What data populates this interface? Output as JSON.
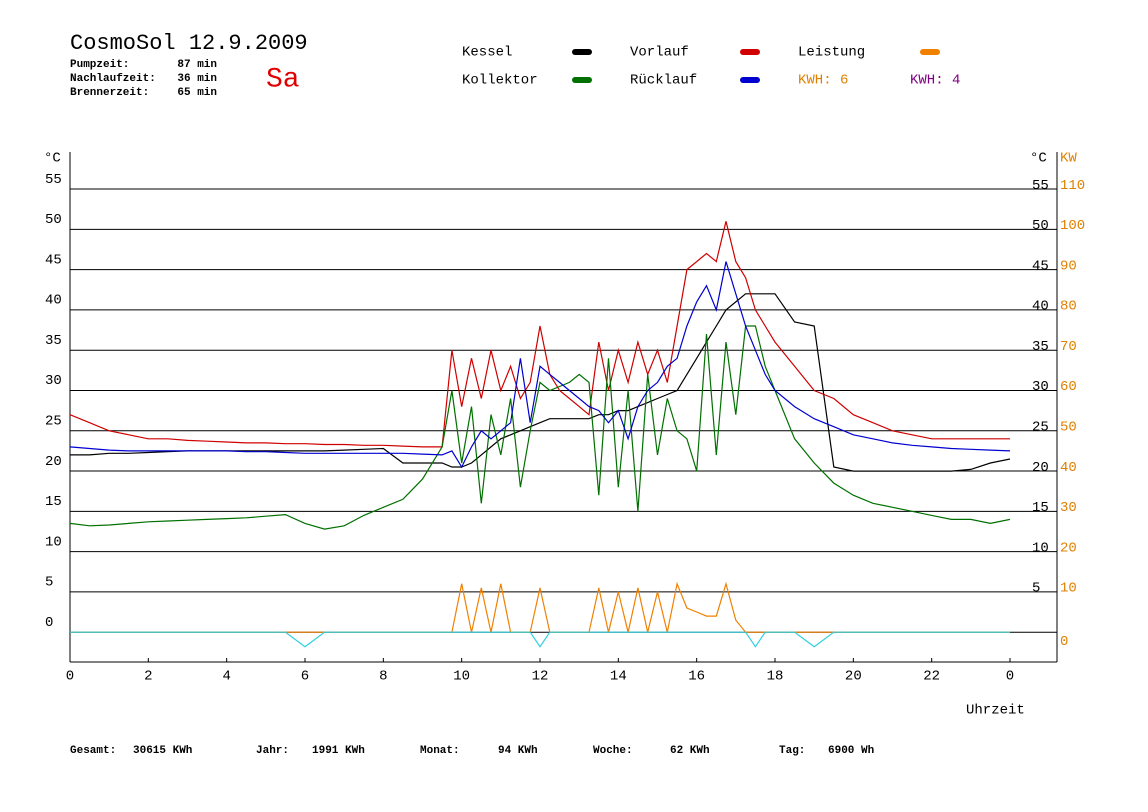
{
  "chart_data": {
    "type": "line",
    "title": "CosmoSol 12.9.2009",
    "day": "Sa",
    "day_color": "#e00000",
    "stats": [
      [
        "Pumpzeit:",
        "87 min"
      ],
      [
        "Nachlaufzeit:",
        "36 min"
      ],
      [
        "Brennerzeit:",
        "65 min"
      ]
    ],
    "kwh_labels": [
      {
        "text": "KWH: 6",
        "color": "#e08000"
      },
      {
        "text": "KWH: 4",
        "color": "#800080"
      }
    ],
    "footer": [
      [
        "Gesamt:",
        "30615 KWh"
      ],
      [
        "Jahr:",
        "1991 KWh"
      ],
      [
        "Monat:",
        "94 KWh"
      ],
      [
        "Woche:",
        "62 KWh"
      ],
      [
        "Tag:",
        "6900 Wh"
      ]
    ],
    "y_label": "°C",
    "y2_label": "KW",
    "x_label": "Uhrzeit",
    "xlim": [
      0,
      25.2
    ],
    "xticks": [
      0,
      2,
      4,
      6,
      8,
      10,
      12,
      14,
      16,
      18,
      20,
      22,
      {
        "value": 24,
        "label": "0"
      }
    ],
    "ylim": [
      -3.7,
      59.6
    ],
    "yticks": [
      0,
      5,
      10,
      15,
      20,
      25,
      30,
      35,
      40,
      45,
      50,
      55
    ],
    "y2lim": [
      -7.4,
      119.2
    ],
    "y2ticks": [
      0,
      10,
      20,
      30,
      40,
      50,
      60,
      70,
      80,
      90,
      100,
      110
    ],
    "y2_color": "#e08000",
    "grid": true,
    "x": [
      0,
      0.5,
      1,
      1.5,
      2,
      2.5,
      3,
      3.5,
      4,
      4.5,
      5,
      5.5,
      6,
      6.5,
      7,
      7.5,
      8,
      8.5,
      9,
      9.5,
      9.75,
      10,
      10.25,
      10.5,
      10.75,
      11,
      11.25,
      11.5,
      11.75,
      12,
      12.25,
      12.5,
      12.75,
      13,
      13.25,
      13.5,
      13.75,
      14,
      14.25,
      14.5,
      14.75,
      15,
      15.25,
      15.5,
      15.75,
      16,
      16.25,
      16.5,
      16.75,
      17,
      17.25,
      17.5,
      17.75,
      18,
      18.5,
      19,
      19.5,
      20,
      20.5,
      21,
      21.5,
      22,
      22.5,
      23,
      23.5,
      24
    ],
    "series": [
      {
        "name": "Kessel",
        "color": "#000000",
        "values": [
          22,
          22,
          22.2,
          22.2,
          22.3,
          22.4,
          22.5,
          22.5,
          22.5,
          22.5,
          22.5,
          22.5,
          22.5,
          22.5,
          22.6,
          22.7,
          22.8,
          21,
          21,
          21,
          20.5,
          20.5,
          21,
          22,
          23,
          24,
          24.5,
          25,
          25.5,
          26,
          26.5,
          26.5,
          26.5,
          26.5,
          26.5,
          27,
          27,
          27.5,
          27.5,
          28,
          28.5,
          29,
          29.5,
          30,
          32,
          34,
          36,
          38,
          40,
          41,
          42,
          42,
          42,
          42,
          38.5,
          38,
          20.5,
          20,
          20,
          20,
          20,
          20,
          20,
          20.2,
          21,
          21.5
        ]
      },
      {
        "name": "Vorlauf",
        "color": "#d00000",
        "values": [
          27,
          26,
          25,
          24.5,
          24,
          24,
          23.8,
          23.7,
          23.6,
          23.5,
          23.5,
          23.4,
          23.4,
          23.3,
          23.3,
          23.2,
          23.2,
          23.1,
          23,
          23,
          35,
          28,
          34,
          29,
          35,
          30,
          33,
          29,
          31,
          38,
          32,
          30,
          29,
          28,
          27,
          36,
          30,
          35,
          31,
          36,
          32,
          35,
          31,
          38,
          45,
          46,
          47,
          46,
          51,
          46,
          44,
          40,
          38,
          36,
          33,
          30,
          29,
          27,
          26,
          25,
          24.5,
          24,
          24,
          24,
          24,
          24
        ]
      },
      {
        "name": "Leistung",
        "color": "#f08000",
        "axis": "y2",
        "values": [
          0,
          0,
          0,
          0,
          0,
          0,
          0,
          0,
          0,
          0,
          0,
          0,
          0,
          0,
          0,
          0,
          0,
          0,
          0,
          0,
          0,
          12,
          0,
          11,
          0,
          12,
          0,
          0,
          0,
          11,
          0,
          0,
          0,
          0,
          0,
          11,
          0,
          10,
          0,
          11,
          0,
          10,
          0,
          12,
          6,
          5,
          4,
          4,
          12,
          3,
          0,
          0,
          0,
          0,
          0,
          0,
          0,
          0,
          0,
          0,
          0,
          0,
          0,
          0,
          0,
          0
        ]
      },
      {
        "name": "Kollektor",
        "color": "#007000",
        "values": [
          13.5,
          13.2,
          13.3,
          13.5,
          13.7,
          13.8,
          13.9,
          14,
          14.1,
          14.2,
          14.4,
          14.6,
          13.5,
          12.8,
          13.2,
          14.5,
          15.5,
          16.5,
          19,
          23,
          30,
          21,
          28,
          16,
          27,
          22,
          29,
          18,
          25,
          31,
          30,
          30.5,
          31,
          32,
          31,
          17,
          34,
          18,
          30,
          15,
          32,
          22,
          29,
          25,
          24,
          20,
          37,
          22,
          36,
          27,
          38,
          38,
          33,
          30,
          24,
          21,
          18.5,
          17,
          16,
          15.5,
          15,
          14.5,
          14,
          14,
          13.5,
          14
        ]
      },
      {
        "name": "Rücklauf",
        "color": "#0000d0",
        "values": [
          23,
          22.8,
          22.6,
          22.5,
          22.5,
          22.5,
          22.5,
          22.5,
          22.5,
          22.4,
          22.4,
          22.3,
          22.2,
          22.2,
          22.2,
          22.2,
          22.2,
          22.2,
          22.1,
          22,
          22.5,
          20.5,
          23,
          25,
          24,
          25,
          26,
          34,
          26,
          33,
          32,
          31,
          30,
          29,
          28,
          27.5,
          26,
          27.5,
          24,
          28,
          30,
          31,
          33,
          34,
          38,
          41,
          43,
          40,
          46,
          42,
          38,
          35,
          32,
          30,
          28,
          26.5,
          25.5,
          24.5,
          24,
          23.5,
          23.2,
          23,
          22.8,
          22.7,
          22.6,
          22.5
        ]
      },
      {
        "color": "#30d0e0",
        "values": [
          0,
          0,
          0,
          0,
          0,
          0,
          0,
          0,
          0,
          0,
          0,
          0,
          -1.8,
          0,
          0,
          0,
          0,
          0,
          0,
          0,
          0,
          0,
          0,
          0,
          0,
          0,
          0,
          0,
          0,
          -1.8,
          0,
          0,
          0,
          0,
          0,
          0,
          0,
          0,
          0,
          0,
          0,
          0,
          0,
          0,
          0,
          0,
          0,
          0,
          0,
          0,
          0,
          -1.8,
          0,
          0,
          0,
          -1.8,
          0,
          0,
          0,
          0,
          0,
          0,
          0,
          0,
          0,
          0
        ]
      }
    ]
  }
}
